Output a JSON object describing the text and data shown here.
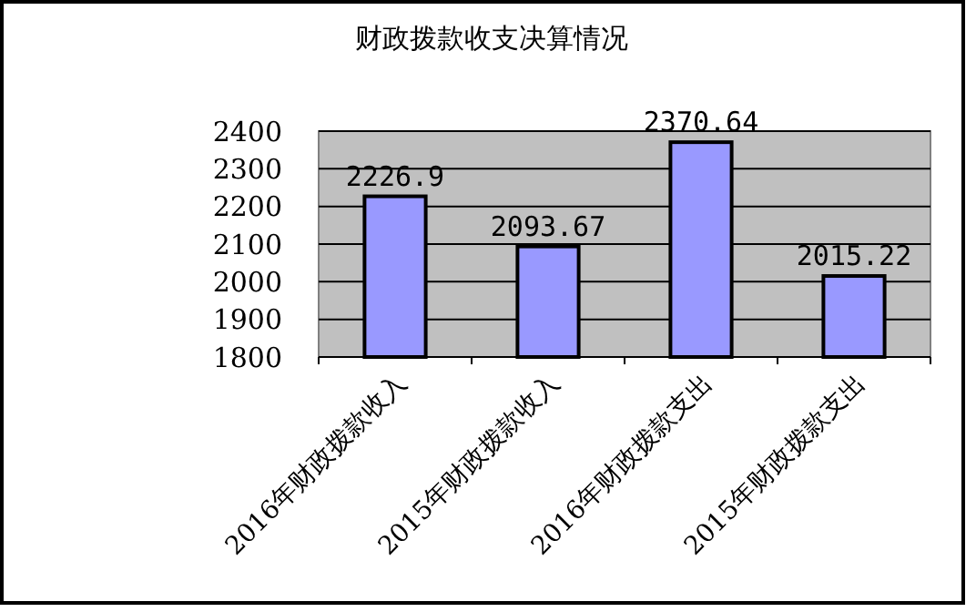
{
  "chart_data": {
    "type": "bar",
    "title": "财政拨款收支决算情况",
    "categories": [
      "2016年财政拨款收入",
      "2015年财政拨款收入",
      "2016年财政拨款支出",
      "2015年财政拨款支出"
    ],
    "values": [
      2226.9,
      2093.67,
      2370.64,
      2015.22
    ],
    "color": "#9999ff",
    "ylim": [
      1800,
      2400
    ],
    "yticks": [
      1800,
      1900,
      2000,
      2100,
      2200,
      2300,
      2400
    ],
    "grid": "y",
    "data_labels": true
  }
}
